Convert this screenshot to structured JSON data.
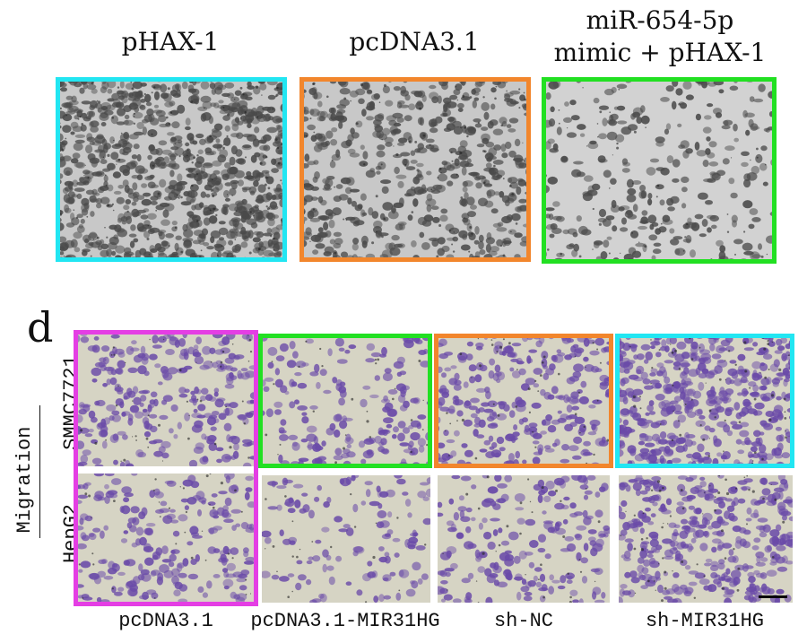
{
  "top_row": {
    "labels": [
      "pHAX-1",
      "pcDNA3.1",
      "miR-654-5p",
      "mimic + pHAX-1"
    ]
  },
  "panel_d": {
    "letter": "d",
    "row_title": "Migration",
    "row_labels": [
      "SMMC7721",
      "HepG2"
    ],
    "column_labels": [
      "pcDNA3.1",
      "pcDNA3.1-MIR31HG",
      "sh-NC",
      "sh-MIR31HG"
    ]
  },
  "colors": {
    "cyan": "#22e6f2",
    "orange": "#f2862c",
    "green": "#22e022",
    "magenta": "#e43ee4",
    "cell_gray": "#4a4a4a",
    "cell_purple": "#6a4aa8"
  }
}
